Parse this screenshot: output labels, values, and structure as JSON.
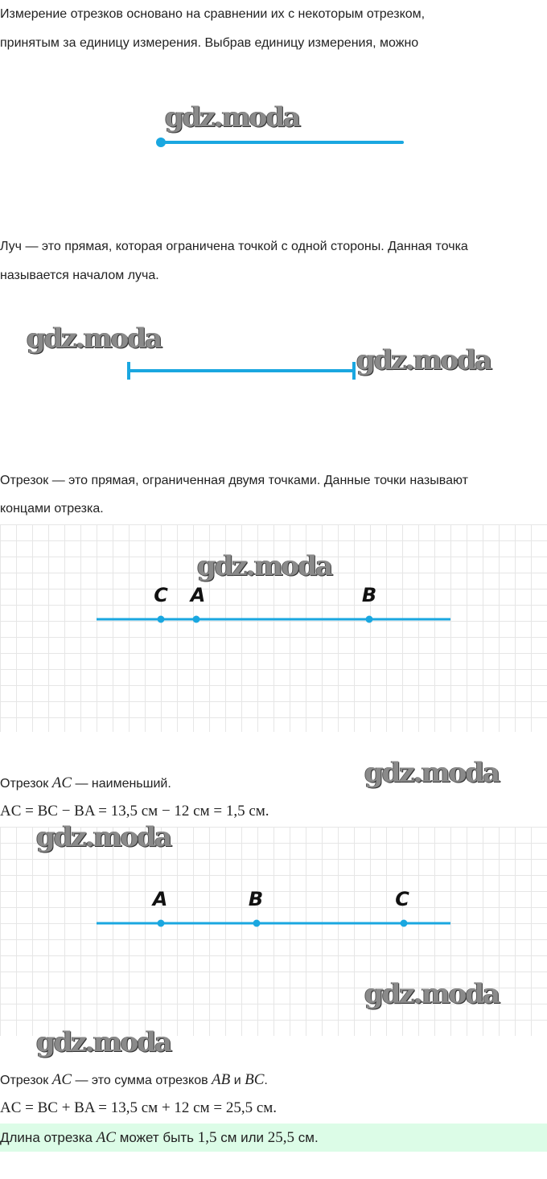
{
  "watermark": "gdz.moda",
  "accent": "#1aa7e0",
  "p1": [
    "Измерение отрезков основано на сравнении их с некоторым отрезком,",
    "принятым за единицу измерения. Выбрав единицу измерения, можно"
  ],
  "p2": [
    "Луч — это прямая, которая ограничена точкой с одной стороны. Данная точка",
    "называется началом луча."
  ],
  "p3": [
    "Отрезок — это прямая, ограниченная двумя точками. Данные точки называют",
    "концами отрезка."
  ],
  "fig3": {
    "labels": [
      "C",
      "A",
      "B"
    ]
  },
  "case1": {
    "pre": "Отрезок ",
    "ac": "AC",
    "post": " — наименьший.",
    "formula": "AC = BC − BA = 13,5 см − 12 см = 1,5 см."
  },
  "fig4": {
    "labels": [
      "A",
      "B",
      "C"
    ]
  },
  "case2": {
    "pre": "Отрезок ",
    "ac": "AC",
    "mid": " — это сумма отрезков ",
    "ab": "AB",
    "and": " и ",
    "bc": "BC",
    "end": ".",
    "formula": "AC = BC + BA = 13,5 см + 12 см = 25,5 см."
  },
  "answer": {
    "pre": "Длина отрезка ",
    "ac": "AC",
    "mid": " может быть ",
    "v1": "1,5",
    "u1": " см или ",
    "v2": "25,5",
    "u2": " см."
  }
}
